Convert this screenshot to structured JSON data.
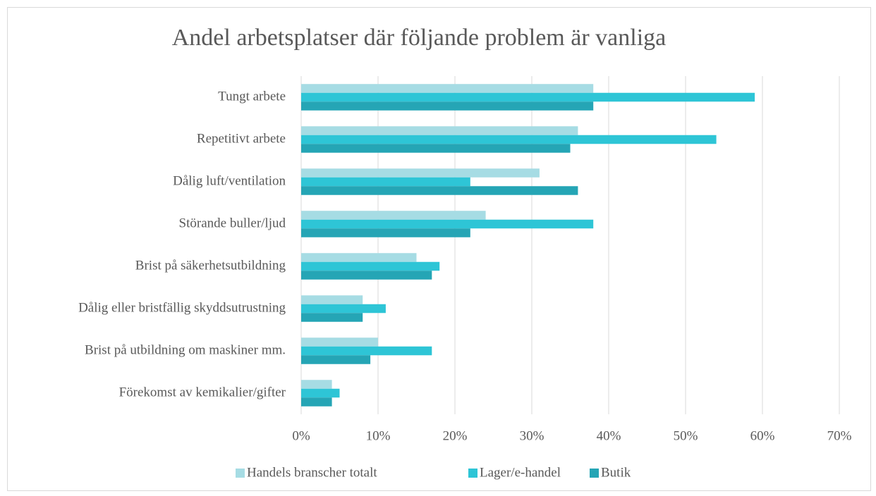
{
  "chart_data": {
    "type": "bar",
    "orientation": "horizontal",
    "title": "Andel arbetsplatser där följande problem är vanliga",
    "categories": [
      "Tungt arbete",
      "Repetitivt arbete",
      "Dålig luft/ventilation",
      "Störande buller/ljud",
      "Brist på säkerhetsutbildning",
      "Dålig eller bristfällig skyddsutrustning",
      "Brist på utbildning om maskiner mm.",
      "Förekomst av kemikalier/gifter"
    ],
    "series": [
      {
        "name": "Handels branscher totalt",
        "color": "#a6dce4",
        "values": [
          38,
          36,
          31,
          24,
          15,
          8,
          10,
          4
        ]
      },
      {
        "name": "Lager/e-handel",
        "color": "#2ec5d6",
        "values": [
          59,
          54,
          22,
          38,
          18,
          11,
          17,
          5
        ]
      },
      {
        "name": "Butik",
        "color": "#25a5b5",
        "values": [
          38,
          35,
          36,
          22,
          17,
          8,
          9,
          4
        ]
      }
    ],
    "xlim": [
      0,
      70
    ],
    "xticks": [
      {
        "value": 0,
        "label": "0%"
      },
      {
        "value": 10,
        "label": "10%"
      },
      {
        "value": 20,
        "label": "20%"
      },
      {
        "value": 30,
        "label": "30%"
      },
      {
        "value": 40,
        "label": "40%"
      },
      {
        "value": 50,
        "label": "50%"
      },
      {
        "value": 60,
        "label": "60%"
      },
      {
        "value": 70,
        "label": "70%"
      }
    ],
    "grid": true,
    "legend": "bottom"
  }
}
